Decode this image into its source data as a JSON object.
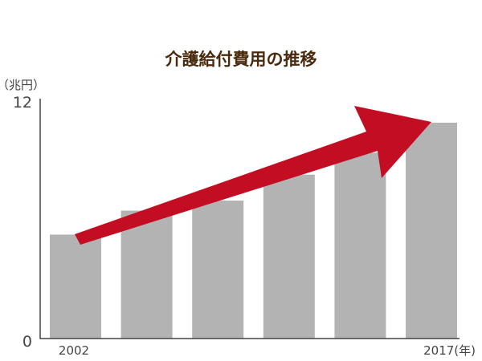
{
  "chart_data": {
    "type": "bar",
    "title": "介護給付費用の推移",
    "ylabel": "（兆円）",
    "xlabel": "(年)",
    "ylim": [
      0,
      12
    ],
    "yticks": [
      "0",
      "12"
    ],
    "x_tick_labels": [
      "2002",
      "2017(年)"
    ],
    "categories": [
      "2002",
      "",
      "",
      "",
      "",
      "2017"
    ],
    "values": [
      5.2,
      6.4,
      6.9,
      8.2,
      9.3,
      10.8
    ],
    "grid": false,
    "colors": {
      "bar": "#b3b3b4",
      "arrow": "#c30d23",
      "title": "#4a2a0c",
      "axis": "#444444"
    },
    "annotation": "red upward trend arrow"
  }
}
